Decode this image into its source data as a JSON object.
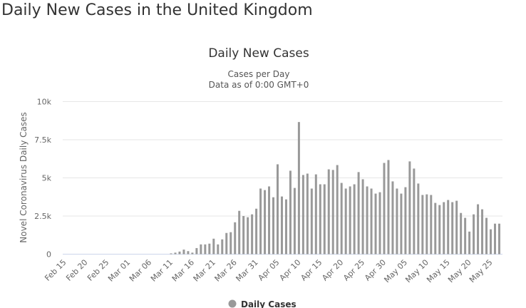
{
  "page": {
    "title": "Daily New Cases in the United Kingdom"
  },
  "chart_data": {
    "type": "bar",
    "title": "Daily New Cases",
    "subtitle_lines": [
      "Cases per Day",
      "Data as of 0:00 GMT+0"
    ],
    "ylabel": "Novel Coronavirus Daily Cases",
    "xlabel": "",
    "ylim": [
      0,
      10000
    ],
    "yticks": [
      0,
      2500,
      5000,
      7500,
      10000
    ],
    "ytick_labels": [
      "0",
      "2.5k",
      "5k",
      "7.5k",
      "10k"
    ],
    "grid": true,
    "legend": {
      "placement": "bottom",
      "entries": [
        "Daily Cases"
      ]
    },
    "colors": {
      "bar": "#999999",
      "legend_marker": "#999999",
      "axis": "#ccd6eb",
      "grid": "#e6e6e6"
    },
    "xtick_labels": [
      "Feb 15",
      "Feb 20",
      "Feb 25",
      "Mar 01",
      "Mar 06",
      "Mar 11",
      "Mar 16",
      "Mar 21",
      "Mar 26",
      "Mar 31",
      "Apr 05",
      "Apr 10",
      "Apr 15",
      "Apr 20",
      "Apr 25",
      "Apr 30",
      "May 05",
      "May 10",
      "May 15",
      "May 20",
      "May 25"
    ],
    "x_start": "Feb 15",
    "x_end": "May 27",
    "series": [
      {
        "name": "Daily Cases",
        "values": [
          0,
          0,
          0,
          0,
          0,
          0,
          0,
          0,
          0,
          0,
          0,
          0,
          0,
          0,
          0,
          0,
          0,
          0,
          0,
          0,
          0,
          0,
          0,
          0,
          0,
          50,
          100,
          170,
          300,
          200,
          100,
          400,
          640,
          640,
          690,
          1015,
          640,
          970,
          1390,
          1440,
          2090,
          2840,
          2500,
          2420,
          2610,
          2980,
          4300,
          4200,
          4440,
          3730,
          5890,
          3780,
          3590,
          5470,
          4340,
          8660,
          5190,
          5280,
          4300,
          5230,
          4580,
          4580,
          5560,
          5520,
          5840,
          4670,
          4300,
          4440,
          4580,
          5380,
          4910,
          4440,
          4300,
          3970,
          4060,
          5980,
          6170,
          4770,
          4300,
          3970,
          4390,
          6080,
          5610,
          4630,
          3880,
          3920,
          3880,
          3360,
          3220,
          3410,
          3550,
          3410,
          3500,
          2700,
          2380,
          1480,
          2610,
          3270,
          2940,
          2380,
          1630,
          2000,
          2000
        ]
      }
    ]
  }
}
